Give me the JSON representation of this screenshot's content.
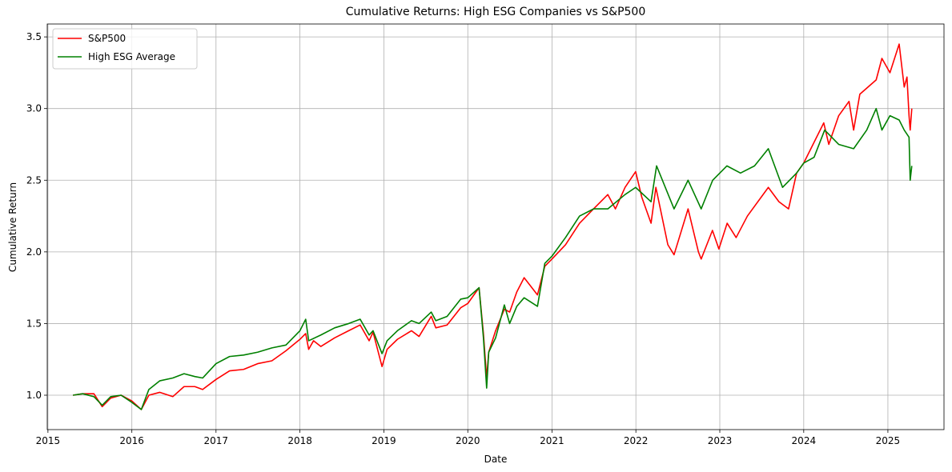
{
  "chart_data": {
    "type": "line",
    "title": "Cumulative Returns: High ESG Companies vs S&P500",
    "xlabel": "Date",
    "ylabel": "Cumulative Return",
    "xlim": [
      "2014-12-29",
      "2025-09-02"
    ],
    "ylim": [
      0.76,
      3.59
    ],
    "x_ticks": [
      "2015",
      "2016",
      "2017",
      "2018",
      "2019",
      "2020",
      "2021",
      "2022",
      "2023",
      "2024",
      "2025"
    ],
    "y_ticks": [
      "1.0",
      "1.5",
      "2.0",
      "2.5",
      "3.0",
      "3.5"
    ],
    "grid": true,
    "legend_position": "top-left",
    "series": [
      {
        "name": "S&P500",
        "color": "#ff0000",
        "x": [
          "2015-04-20",
          "2015-06-01",
          "2015-07-20",
          "2015-08-25",
          "2015-10-01",
          "2015-11-15",
          "2016-01-01",
          "2016-02-11",
          "2016-03-15",
          "2016-05-01",
          "2016-06-27",
          "2016-08-15",
          "2016-10-01",
          "2016-11-04",
          "2017-01-01",
          "2017-03-01",
          "2017-05-01",
          "2017-07-01",
          "2017-09-01",
          "2017-11-01",
          "2018-01-01",
          "2018-01-26",
          "2018-02-08",
          "2018-03-01",
          "2018-04-02",
          "2018-06-01",
          "2018-08-01",
          "2018-09-20",
          "2018-10-29",
          "2018-11-15",
          "2018-12-24",
          "2019-01-15",
          "2019-03-01",
          "2019-05-01",
          "2019-06-03",
          "2019-07-26",
          "2019-08-15",
          "2019-10-03",
          "2019-12-01",
          "2020-01-01",
          "2020-02-19",
          "2020-03-09",
          "2020-03-23",
          "2020-04-01",
          "2020-05-01",
          "2020-06-08",
          "2020-07-01",
          "2020-08-01",
          "2020-09-02",
          "2020-10-30",
          "2020-12-01",
          "2021-01-01",
          "2021-03-01",
          "2021-05-01",
          "2021-07-01",
          "2021-09-01",
          "2021-10-04",
          "2021-11-15",
          "2021-12-31",
          "2022-01-27",
          "2022-03-08",
          "2022-03-29",
          "2022-05-20",
          "2022-06-16",
          "2022-08-16",
          "2022-09-30",
          "2022-10-12",
          "2022-11-30",
          "2022-12-28",
          "2023-02-02",
          "2023-03-13",
          "2023-05-01",
          "2023-07-31",
          "2023-09-15",
          "2023-10-27",
          "2023-12-01",
          "2024-01-01",
          "2024-03-28",
          "2024-04-19",
          "2024-06-01",
          "2024-07-16",
          "2024-08-05",
          "2024-09-01",
          "2024-11-11",
          "2024-12-06",
          "2025-01-10",
          "2025-02-19",
          "2025-03-13",
          "2025-03-25",
          "2025-04-03",
          "2025-04-08",
          "2025-04-15"
        ],
        "values": [
          1.0,
          1.01,
          1.01,
          0.92,
          0.98,
          1.0,
          0.96,
          0.9,
          1.0,
          1.02,
          0.99,
          1.06,
          1.06,
          1.04,
          1.11,
          1.17,
          1.18,
          1.22,
          1.24,
          1.31,
          1.39,
          1.43,
          1.32,
          1.38,
          1.34,
          1.4,
          1.45,
          1.49,
          1.38,
          1.44,
          1.2,
          1.32,
          1.39,
          1.45,
          1.41,
          1.55,
          1.47,
          1.49,
          1.61,
          1.64,
          1.75,
          1.43,
          1.12,
          1.3,
          1.45,
          1.6,
          1.58,
          1.72,
          1.82,
          1.7,
          1.9,
          1.95,
          2.05,
          2.2,
          2.3,
          2.4,
          2.3,
          2.45,
          2.56,
          2.38,
          2.2,
          2.45,
          2.05,
          1.98,
          2.3,
          2.0,
          1.95,
          2.15,
          2.02,
          2.2,
          2.1,
          2.25,
          2.45,
          2.35,
          2.3,
          2.55,
          2.62,
          2.9,
          2.75,
          2.95,
          3.05,
          2.85,
          3.1,
          3.2,
          3.35,
          3.25,
          3.45,
          3.15,
          3.22,
          2.95,
          2.85,
          3.0
        ]
      },
      {
        "name": "High ESG Average",
        "color": "#008000",
        "x": [
          "2015-04-20",
          "2015-06-01",
          "2015-07-20",
          "2015-08-25",
          "2015-10-01",
          "2015-11-15",
          "2016-01-01",
          "2016-02-11",
          "2016-03-15",
          "2016-05-01",
          "2016-06-27",
          "2016-08-15",
          "2016-10-01",
          "2016-11-04",
          "2017-01-01",
          "2017-03-01",
          "2017-05-01",
          "2017-07-01",
          "2017-09-01",
          "2017-11-01",
          "2018-01-01",
          "2018-01-26",
          "2018-02-08",
          "2018-04-02",
          "2018-06-01",
          "2018-08-01",
          "2018-09-20",
          "2018-10-29",
          "2018-11-15",
          "2018-12-24",
          "2019-01-15",
          "2019-03-01",
          "2019-05-01",
          "2019-06-03",
          "2019-07-26",
          "2019-08-15",
          "2019-10-03",
          "2019-12-01",
          "2020-01-01",
          "2020-02-19",
          "2020-03-09",
          "2020-03-23",
          "2020-04-01",
          "2020-05-01",
          "2020-06-08",
          "2020-07-01",
          "2020-08-01",
          "2020-09-02",
          "2020-10-30",
          "2020-12-01",
          "2021-01-01",
          "2021-03-01",
          "2021-05-01",
          "2021-07-01",
          "2021-09-01",
          "2021-11-15",
          "2021-12-31",
          "2022-03-08",
          "2022-04-01",
          "2022-06-16",
          "2022-08-16",
          "2022-10-12",
          "2022-12-01",
          "2023-02-01",
          "2023-04-01",
          "2023-06-01",
          "2023-07-31",
          "2023-10-01",
          "2023-12-01",
          "2024-01-01",
          "2024-02-15",
          "2024-04-01",
          "2024-06-01",
          "2024-08-05",
          "2024-10-01",
          "2024-11-11",
          "2024-12-06",
          "2025-01-10",
          "2025-02-19",
          "2025-03-13",
          "2025-04-03",
          "2025-04-08",
          "2025-04-15"
        ],
        "values": [
          1.0,
          1.01,
          0.99,
          0.93,
          0.99,
          1.0,
          0.95,
          0.9,
          1.04,
          1.1,
          1.12,
          1.15,
          1.13,
          1.12,
          1.22,
          1.27,
          1.28,
          1.3,
          1.33,
          1.35,
          1.45,
          1.53,
          1.38,
          1.42,
          1.47,
          1.5,
          1.53,
          1.42,
          1.45,
          1.29,
          1.38,
          1.45,
          1.52,
          1.5,
          1.58,
          1.52,
          1.55,
          1.67,
          1.68,
          1.75,
          1.4,
          1.05,
          1.3,
          1.4,
          1.63,
          1.5,
          1.62,
          1.68,
          1.62,
          1.92,
          1.97,
          2.1,
          2.25,
          2.3,
          2.3,
          2.4,
          2.45,
          2.35,
          2.6,
          2.3,
          2.5,
          2.3,
          2.5,
          2.6,
          2.55,
          2.6,
          2.72,
          2.45,
          2.55,
          2.62,
          2.66,
          2.85,
          2.75,
          2.72,
          2.85,
          3.0,
          2.85,
          2.95,
          2.92,
          2.85,
          2.8,
          2.5,
          2.6
        ]
      }
    ]
  }
}
